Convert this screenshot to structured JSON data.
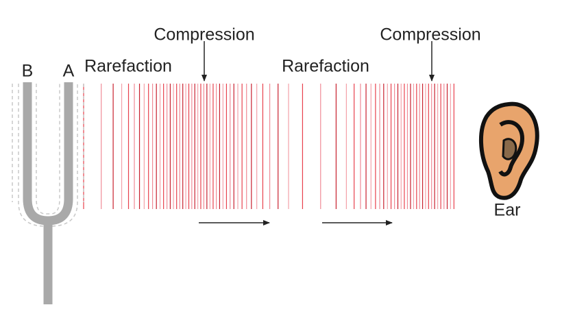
{
  "labels": {
    "prong_b": "B",
    "prong_a": "A",
    "rarefaction_1": "Rarefaction",
    "compression_1": "Compression",
    "rarefaction_2": "Rarefaction",
    "compression_2": "Compression",
    "ear": "Ear"
  }
}
